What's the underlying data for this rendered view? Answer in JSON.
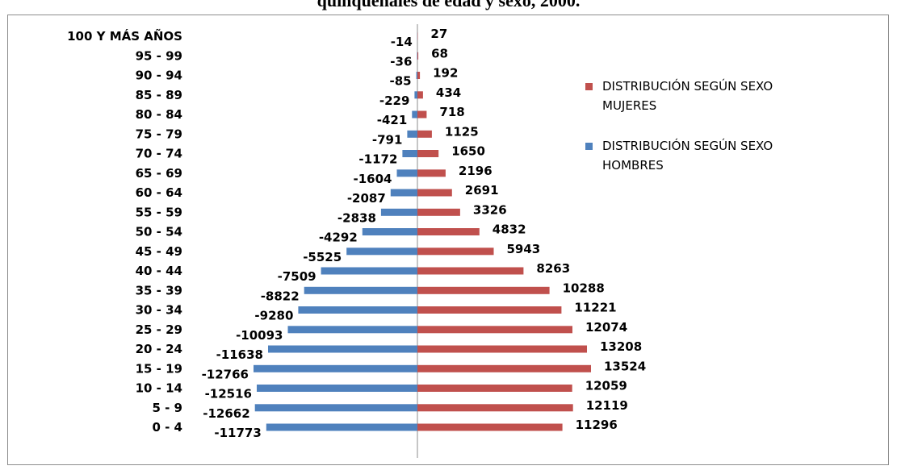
{
  "title_fragment": "quinquenales de edad y sexo, 2000.",
  "chart_data": {
    "type": "bar",
    "orientation": "horizontal",
    "categories": [
      "0 - 4",
      "5 - 9",
      "10 - 14",
      "15 - 19",
      "20 - 24",
      "25 - 29",
      "30 - 34",
      "35 - 39",
      "40 - 44",
      "45 - 49",
      "50 - 54",
      "55 - 59",
      "60 - 64",
      "65 - 69",
      "70 - 74",
      "75 - 79",
      "80 - 84",
      "85 - 89",
      "90 - 94",
      "95 - 99",
      "100 Y MÁS AÑOS"
    ],
    "series": [
      {
        "name": "DISTRIBUCIÓN SEGÚN SEXO MUJERES",
        "legend_lines": [
          "DISTRIBUCIÓN SEGÚN SEXO",
          "MUJERES"
        ],
        "color": "#c0504d",
        "values": [
          11296,
          12119,
          12059,
          13524,
          13208,
          12074,
          11221,
          10288,
          8263,
          5943,
          4832,
          3326,
          2691,
          2196,
          1650,
          1125,
          718,
          434,
          192,
          68,
          27
        ]
      },
      {
        "name": "DISTRIBUCIÓN SEGÚN SEXO HOMBRES",
        "legend_lines": [
          "DISTRIBUCIÓN SEGÚN SEXO",
          "HOMBRES"
        ],
        "color": "#4f81bd",
        "values": [
          -11773,
          -12662,
          -12516,
          -12766,
          -11638,
          -10093,
          -9280,
          -8822,
          -7509,
          -5525,
          -4292,
          -2838,
          -2087,
          -1604,
          -1172,
          -791,
          -421,
          -229,
          -85,
          -36,
          -14
        ]
      }
    ],
    "xlim": [
      -20000,
      20000
    ],
    "legend_position": "right",
    "grid": false
  }
}
